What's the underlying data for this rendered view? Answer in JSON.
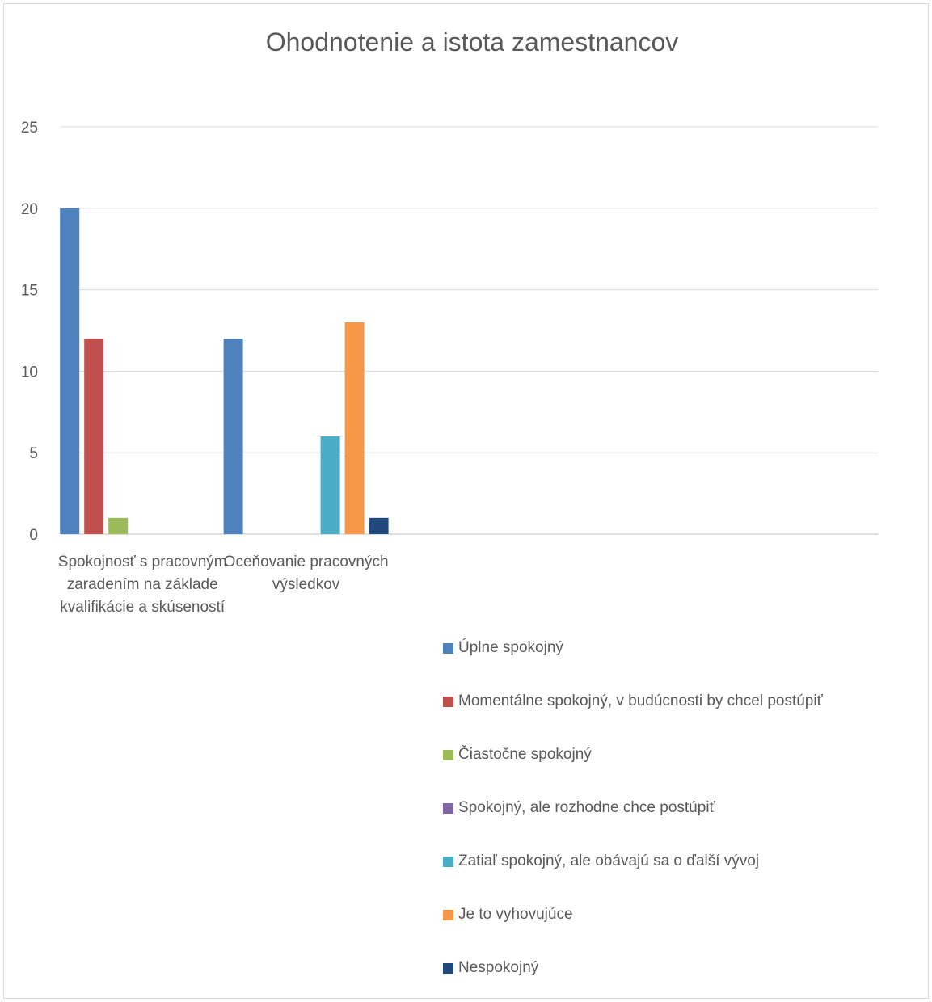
{
  "chart_data": {
    "type": "bar",
    "title": "Ohodnotenie a istota zamestnancov",
    "xlabel": "",
    "ylabel": "",
    "ylim": [
      0,
      25
    ],
    "yticks": [
      0,
      5,
      10,
      15,
      20,
      25
    ],
    "grid": true,
    "legend_position": "bottom",
    "categories": [
      "Spokojnosť s pracovným zaradením na základe kvalifikácie a skúseností",
      "Oceňovanie pracovných výsledkov"
    ],
    "category_label_lines": [
      [
        "Spokojnosť s pracovným",
        "zaradením na základe",
        "kvalifikácie a skúseností"
      ],
      [
        "Oceňovanie pracovných",
        "výsledkov"
      ]
    ],
    "series": [
      {
        "name": "Úplne spokojný",
        "color": "#4f81bd",
        "values": [
          20,
          12
        ]
      },
      {
        "name": "Momentálne spokojný, v budúcnosti by chcel postúpiť",
        "color": "#c0504d",
        "values": [
          12,
          0
        ]
      },
      {
        "name": "Čiastočne spokojný",
        "color": "#9bbb59",
        "values": [
          1,
          0
        ]
      },
      {
        "name": "Spokojný, ale rozhodne chce postúpiť",
        "color": "#8064a2",
        "values": [
          0,
          0
        ]
      },
      {
        "name": "Zatiaľ spokojný, ale obávajú sa o ďalší vývoj",
        "color": "#4bacc6",
        "values": [
          0,
          6
        ]
      },
      {
        "name": "Je to vyhovujúce",
        "color": "#f79646",
        "values": [
          0,
          13
        ]
      },
      {
        "name": "Nespokojný",
        "color": "#1f497d",
        "values": [
          0,
          1
        ]
      }
    ]
  }
}
